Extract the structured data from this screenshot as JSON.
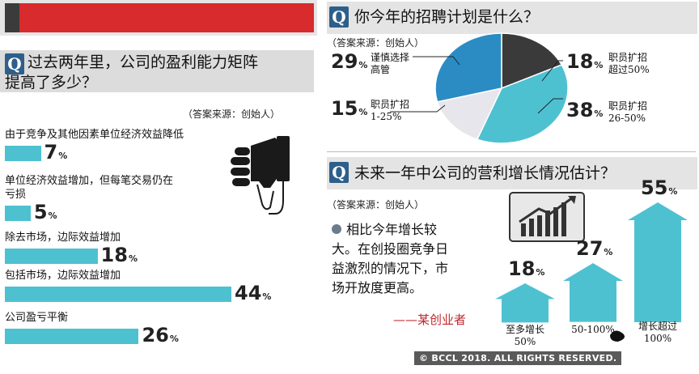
{
  "colors": {
    "accent_red": "#d72b2e",
    "bar_teal": "#4ec1d1",
    "header_gray": "#dcdcdc",
    "q_blue": "#2d5f8a",
    "pie_blue": "#2b8cc4",
    "pie_dark": "#3a3a3a",
    "pie_teal": "#4ec1d1",
    "pie_light": "#e6e6ec"
  },
  "left": {
    "q_letter": "Q",
    "title_line1": "过去两年里，公司的盈利能力矩阵",
    "title_line2": "提高了多少？",
    "source": "（答案来源：创始人）",
    "icon": "thumbs-down-icon"
  },
  "right_top": {
    "q_letter": "Q",
    "title": "你今年的招聘计划是什么？",
    "source": "（答案来源：创始人）"
  },
  "right_bottom": {
    "q_letter": "Q",
    "title": "未来一年中公司的营利增长情况估计？",
    "source": "（答案来源：创始人）",
    "quote": "相比今年增长较大。在创投圈竞争日益激烈的情况下，市场开放度更高。",
    "quote_lines": [
      "相比今年增长较",
      "大。在创投圈竞争日",
      "益激烈的情况下，市",
      "场开放度更高。"
    ],
    "author": "——某创业者",
    "icon": "growth-chart-icon"
  },
  "copyright": "© BCCL 2018. ALL RIGHTS RESERVED.",
  "chart_data": [
    {
      "type": "bar",
      "title": "过去两年里，公司的盈利能力矩阵提高了多少？",
      "categories": [
        "由于竞争及其他因素单位经济效益降低",
        "单位经济效益增加，但每笔交易仍在亏损",
        "除去市场，边际效益增加",
        "包括市场，边际效益增加",
        "公司盈亏平衡"
      ],
      "category_lines": [
        [
          "由于竞争及其他因素单位经济效益降低"
        ],
        [
          "单位经济效益增加，但每笔交易仍在",
          "亏损"
        ],
        [
          "除去市场，边际效益增加"
        ],
        [
          "包括市场，边际效益增加"
        ],
        [
          "公司盈亏平衡"
        ]
      ],
      "values": [
        7,
        5,
        18,
        44,
        26
      ],
      "value_labels": [
        "7",
        "5",
        "18",
        "44",
        "26"
      ],
      "unit": "%"
    },
    {
      "type": "pie",
      "title": "你今年的招聘计划是什么？",
      "labels": [
        "职员扩招超过50%",
        "职员扩招26-50%",
        "职员扩招1-25%",
        "谨慎选择高管"
      ],
      "label_lines": [
        [
          "职员扩招",
          "超过50%"
        ],
        [
          "职员扩招",
          "26-50%"
        ],
        [
          "职员扩招",
          "1-25%"
        ],
        [
          "谨慎选择",
          "高管"
        ]
      ],
      "values": [
        18,
        38,
        15,
        29
      ],
      "value_labels": [
        "18",
        "38",
        "15",
        "29"
      ],
      "unit": "%"
    },
    {
      "type": "bar",
      "title": "未来一年中公司的营利增长情况估计？",
      "categories": [
        "至多增长50%",
        "50-100%",
        "增长超过100%"
      ],
      "category_lines": [
        [
          "至多增长",
          "50%"
        ],
        [
          "50-100%"
        ],
        [
          "增长超过",
          "100%"
        ]
      ],
      "values": [
        18,
        27,
        55
      ],
      "value_labels": [
        "18",
        "27",
        "55"
      ],
      "unit": "%"
    }
  ]
}
